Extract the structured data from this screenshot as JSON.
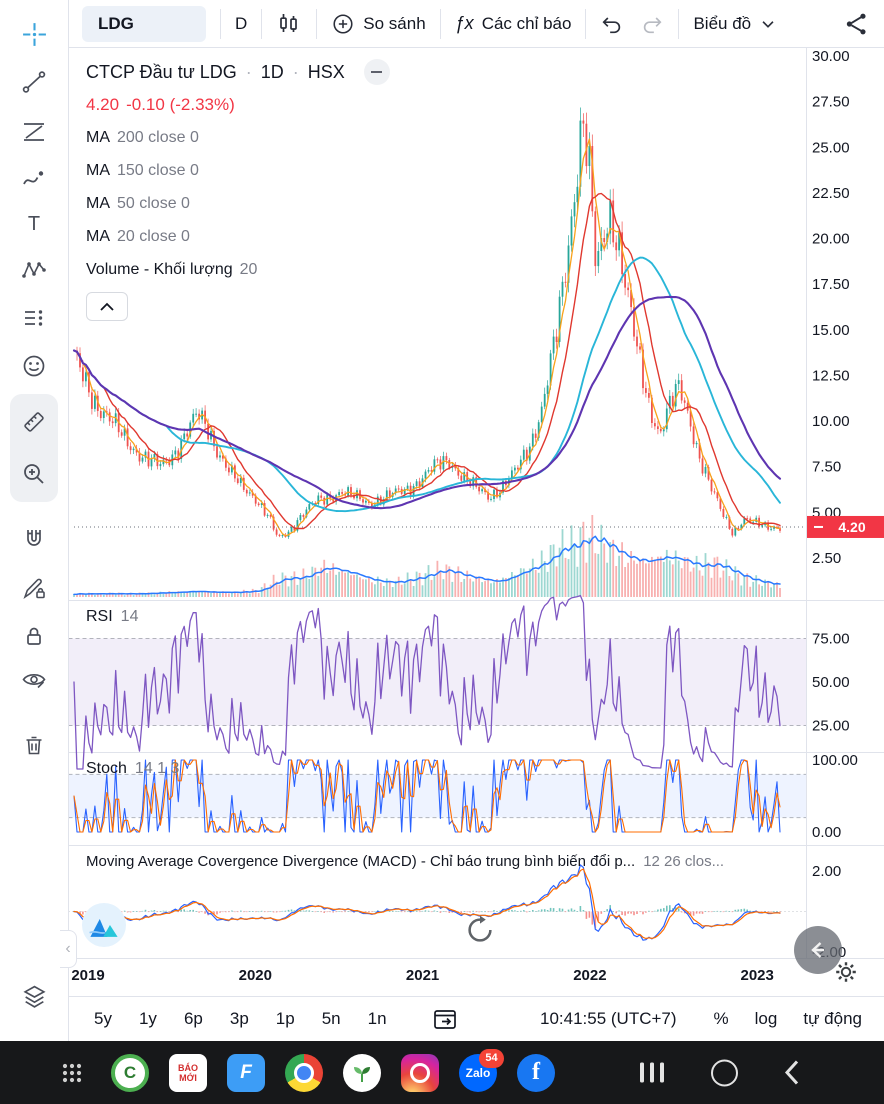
{
  "topbar": {
    "symbol": "LDG",
    "interval": "D",
    "compare_label": "So sánh",
    "indicators_fx": "ƒx",
    "indicators_label": "Các chỉ báo",
    "chart_label": "Biểu đồ"
  },
  "legend": {
    "title": "CTCP Đầu tư LDG",
    "sep": "·",
    "interval": "1D",
    "exchange": "HSX",
    "price": "4.20",
    "change": "-0.10 (-2.33%)",
    "ma_rows": [
      {
        "label": "MA",
        "params": "200 close 0"
      },
      {
        "label": "MA",
        "params": "150 close 0"
      },
      {
        "label": "MA",
        "params": "50 close 0"
      },
      {
        "label": "MA",
        "params": "20 close 0"
      }
    ],
    "volume_label": "Volume - Khối lượng",
    "volume_params": "20",
    "rsi_label": "RSI",
    "rsi_params": "14",
    "stoch_label": "Stoch",
    "stoch_params": "14 1 3",
    "macd_label": "Moving Average Covergence Divergence (MACD) - Chỉ báo trung bình biến đổi p...",
    "macd_params": "12 26 clos..."
  },
  "axes": {
    "price_ticks": [
      "30.00",
      "27.50",
      "25.00",
      "22.50",
      "20.00",
      "17.50",
      "15.00",
      "12.50",
      "10.00",
      "7.50",
      "5.00",
      "2.50"
    ],
    "last_price_label": "4.20",
    "rsi_ticks": [
      {
        "v": 75,
        "label": "75.00"
      },
      {
        "v": 50,
        "label": "50.00"
      },
      {
        "v": 25,
        "label": "25.00"
      }
    ],
    "stoch_ticks": [
      {
        "v": 100,
        "label": "100.00"
      },
      {
        "v": 0,
        "label": "0.00"
      }
    ],
    "macd_ticks": [
      {
        "v": 2,
        "label": "2.00"
      },
      {
        "v": -2,
        "label": "-2.00"
      }
    ],
    "time_labels": [
      {
        "t": 2019,
        "label": "2019"
      },
      {
        "t": 2020,
        "label": "2020"
      },
      {
        "t": 2021,
        "label": "2021"
      },
      {
        "t": 2022,
        "label": "2022"
      },
      {
        "t": 2023,
        "label": "2023"
      }
    ]
  },
  "bottom_toolbar": {
    "ranges": [
      "5y",
      "1y",
      "6p",
      "3p",
      "1p",
      "5n",
      "1n"
    ],
    "clock": "10:41:55 (UTC+7)",
    "percent": "%",
    "log": "log",
    "auto": "tự động"
  },
  "android_nav": {
    "coccoc_c": "C",
    "baomoi_line1": "BÁO",
    "baomoi_line2": "MỚI",
    "bluef_f": "F",
    "zalo_label": "Zalo",
    "zalo_badge": "54",
    "facebook_f": "f"
  },
  "colors": {
    "up": "#26a69a",
    "down": "#ef5350",
    "ma20": "#f8a21c",
    "ma50": "#e0382f",
    "ma150": "#29b6d8",
    "ma200": "#5e35b1",
    "rsi": "#7e57c2",
    "stoch_k": "#2962ff",
    "stoch_d": "#ff6d00",
    "macd_line": "#2962ff",
    "macd_signal": "#ff6d00",
    "vol_ma": "#2979ff",
    "accent_red": "#f23645",
    "band_rsi": "rgba(126,87,194,0.10)",
    "band_stoch": "rgba(41,98,255,0.08)"
  },
  "chart_data": {
    "type": "candlestick",
    "symbol": "LDG",
    "exchange": "HSX",
    "timeframe": "1D",
    "last_price": 4.2,
    "change": -0.1,
    "change_pct": -2.33,
    "x_domain_years": [
      2019.0,
      2023.22
    ],
    "price_view_range": [
      2.0,
      30.5
    ],
    "overlays": [
      "MA 200 close",
      "MA 150 close",
      "MA 50 close",
      "MA 20 close",
      "Volume MA 20"
    ],
    "lower_indicators": [
      "RSI 14",
      "Stoch 14 1 3",
      "MACD 12 26 close"
    ],
    "close_anchors": [
      [
        2019.0,
        13.4
      ],
      [
        2019.06,
        12.3
      ],
      [
        2019.12,
        11.2
      ],
      [
        2019.2,
        10.2
      ],
      [
        2019.28,
        9.3
      ],
      [
        2019.36,
        8.5
      ],
      [
        2019.45,
        7.8
      ],
      [
        2019.52,
        7.5
      ],
      [
        2019.6,
        8.3
      ],
      [
        2019.68,
        9.5
      ],
      [
        2019.74,
        10.3
      ],
      [
        2019.8,
        9.6
      ],
      [
        2019.86,
        8.4
      ],
      [
        2019.93,
        7.2
      ],
      [
        2020.0,
        6.4
      ],
      [
        2020.08,
        5.9
      ],
      [
        2020.16,
        4.8
      ],
      [
        2020.22,
        3.5
      ],
      [
        2020.28,
        3.9
      ],
      [
        2020.36,
        4.9
      ],
      [
        2020.44,
        5.5
      ],
      [
        2020.52,
        5.8
      ],
      [
        2020.6,
        6.2
      ],
      [
        2020.68,
        5.8
      ],
      [
        2020.76,
        5.5
      ],
      [
        2020.84,
        5.8
      ],
      [
        2020.92,
        6.0
      ],
      [
        2021.0,
        6.3
      ],
      [
        2021.08,
        6.9
      ],
      [
        2021.16,
        7.5
      ],
      [
        2021.24,
        7.9
      ],
      [
        2021.32,
        7.0
      ],
      [
        2021.4,
        6.3
      ],
      [
        2021.48,
        5.9
      ],
      [
        2021.56,
        6.4
      ],
      [
        2021.64,
        7.2
      ],
      [
        2021.72,
        8.6
      ],
      [
        2021.8,
        10.8
      ],
      [
        2021.88,
        14.5
      ],
      [
        2021.94,
        18.5
      ],
      [
        2022.0,
        23.5
      ],
      [
        2022.04,
        26.8
      ],
      [
        2022.08,
        23.5
      ],
      [
        2022.12,
        18.0
      ],
      [
        2022.16,
        19.8
      ],
      [
        2022.2,
        21.6
      ],
      [
        2022.25,
        20.2
      ],
      [
        2022.3,
        17.2
      ],
      [
        2022.36,
        14.0
      ],
      [
        2022.43,
        11.2
      ],
      [
        2022.5,
        9.3
      ],
      [
        2022.57,
        11.0
      ],
      [
        2022.62,
        11.8
      ],
      [
        2022.68,
        10.2
      ],
      [
        2022.74,
        8.0
      ],
      [
        2022.81,
        6.2
      ],
      [
        2022.88,
        4.9
      ],
      [
        2022.94,
        3.9
      ],
      [
        2023.0,
        4.6
      ],
      [
        2023.06,
        4.4
      ],
      [
        2023.12,
        4.3
      ],
      [
        2023.22,
        4.2
      ]
    ],
    "volume_anchors": [
      [
        2019.0,
        0.05
      ],
      [
        2019.4,
        0.05
      ],
      [
        2019.7,
        0.09
      ],
      [
        2019.95,
        0.07
      ],
      [
        2020.1,
        0.1
      ],
      [
        2020.22,
        0.28
      ],
      [
        2020.35,
        0.3
      ],
      [
        2020.5,
        0.48
      ],
      [
        2020.6,
        0.42
      ],
      [
        2020.75,
        0.28
      ],
      [
        2020.9,
        0.22
      ],
      [
        2021.05,
        0.3
      ],
      [
        2021.2,
        0.42
      ],
      [
        2021.35,
        0.32
      ],
      [
        2021.5,
        0.24
      ],
      [
        2021.65,
        0.38
      ],
      [
        2021.8,
        0.55
      ],
      [
        2021.9,
        0.75
      ],
      [
        2022.0,
        0.8
      ],
      [
        2022.06,
        0.95
      ],
      [
        2022.14,
        0.85
      ],
      [
        2022.22,
        0.72
      ],
      [
        2022.32,
        0.62
      ],
      [
        2022.42,
        0.55
      ],
      [
        2022.52,
        0.68
      ],
      [
        2022.62,
        0.58
      ],
      [
        2022.72,
        0.48
      ],
      [
        2022.82,
        0.52
      ],
      [
        2022.92,
        0.38
      ],
      [
        2023.02,
        0.28
      ],
      [
        2023.12,
        0.22
      ],
      [
        2023.22,
        0.18
      ]
    ]
  }
}
